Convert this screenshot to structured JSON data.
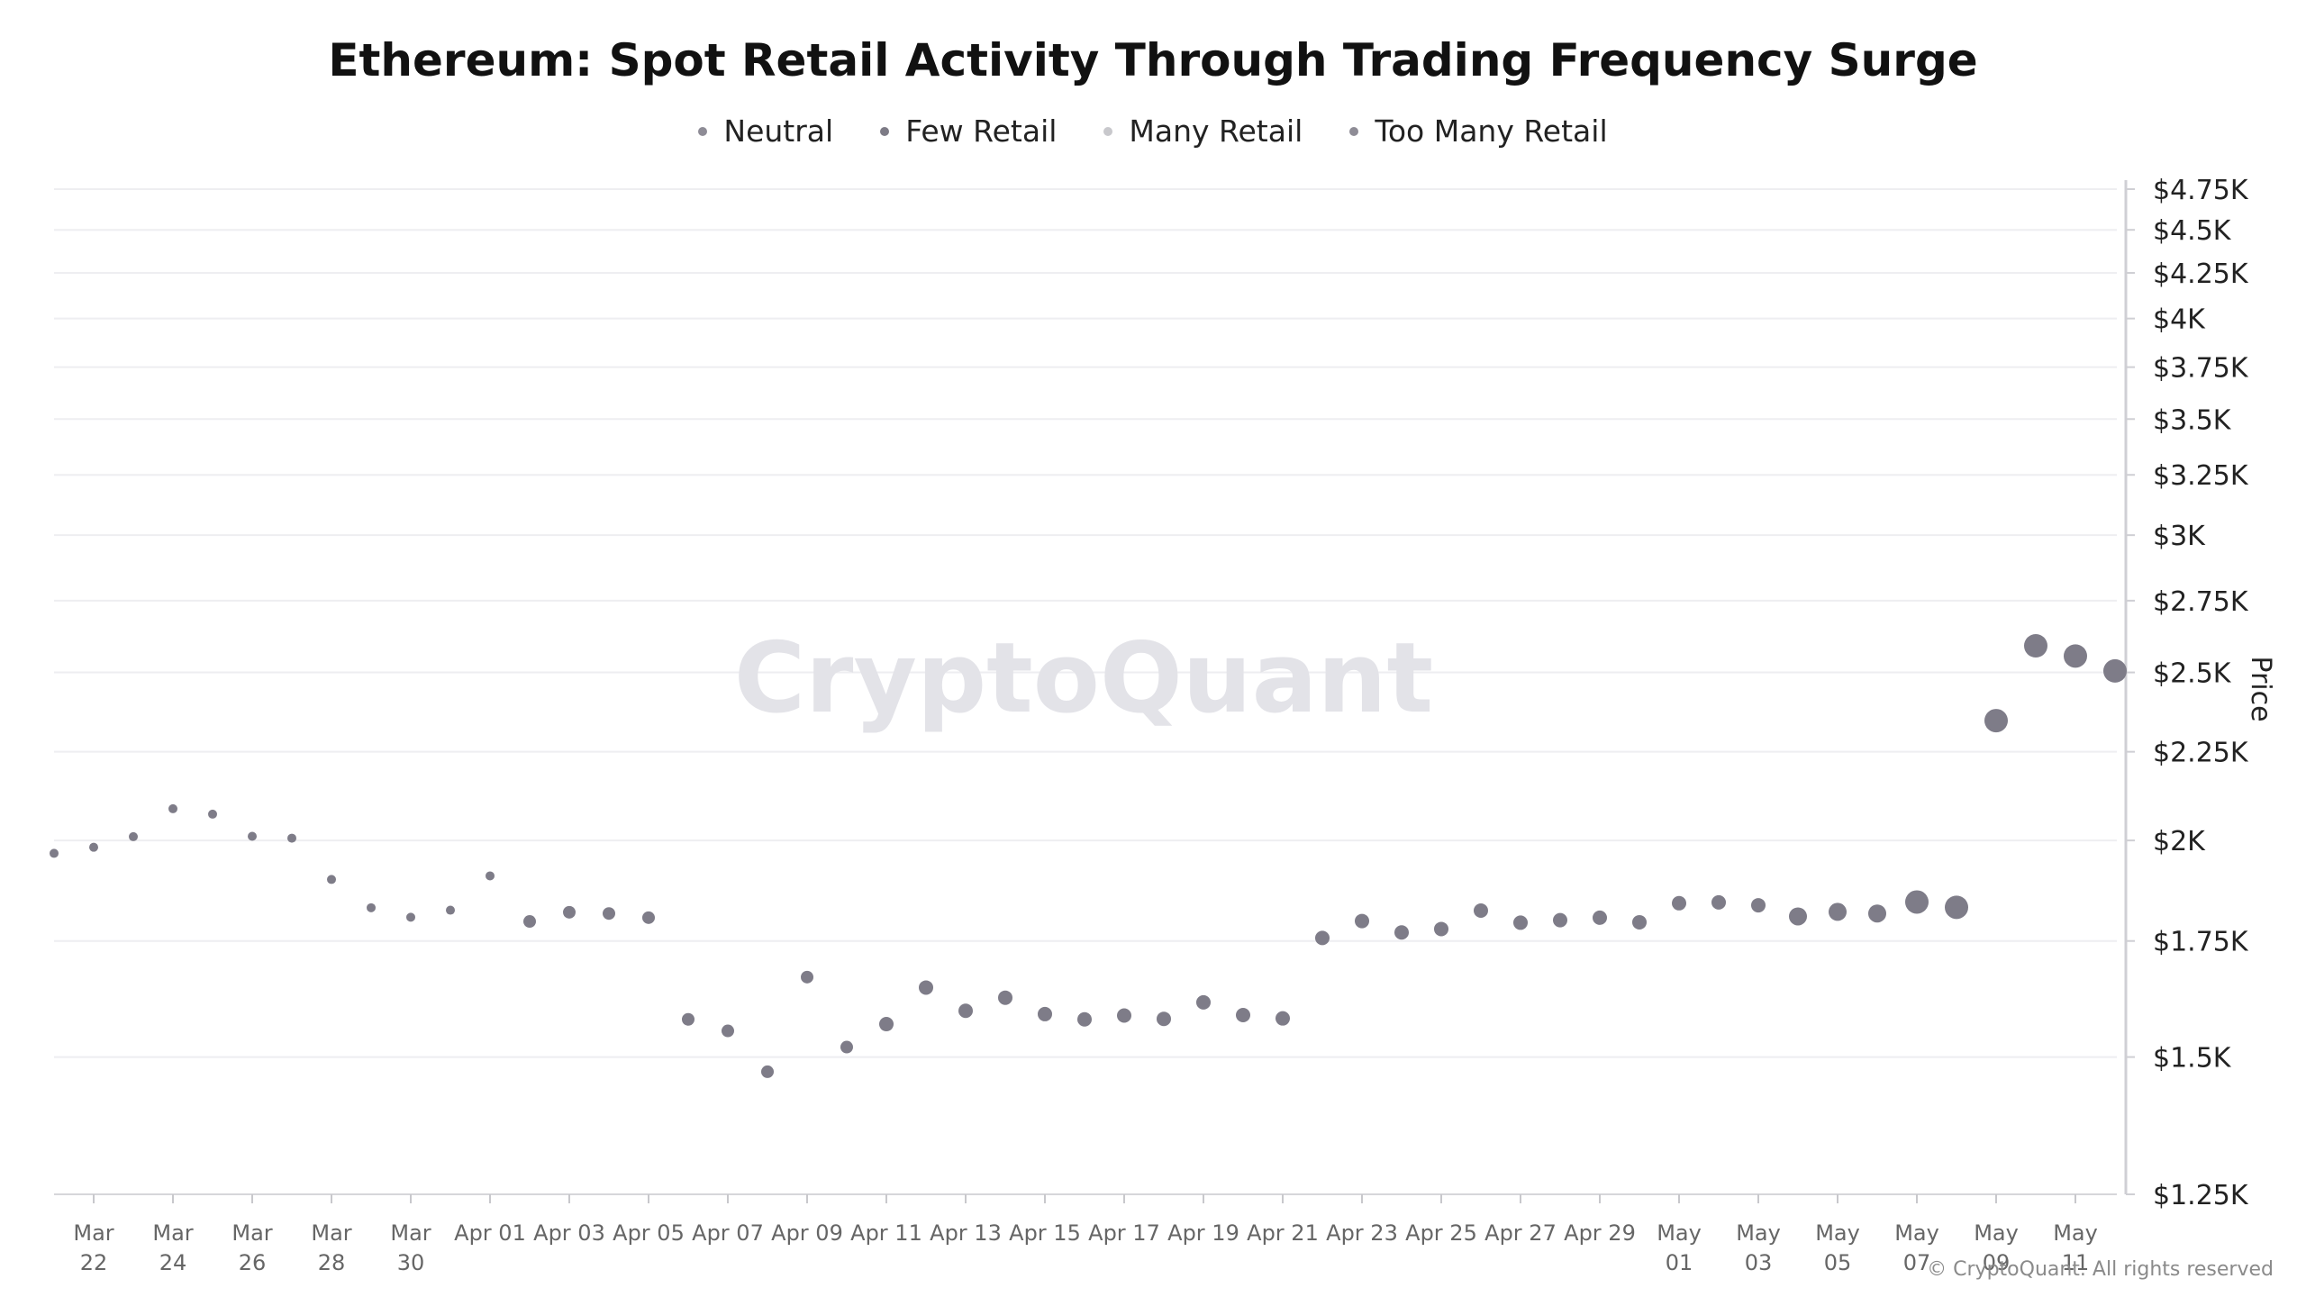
{
  "chart_data": {
    "type": "scatter",
    "title": "Ethereum: Spot Retail Activity Through Trading Frequency Surge",
    "ylabel": "Price",
    "y_scale": "log",
    "ylim": [
      1250,
      4750
    ],
    "grid": true,
    "legend_position": "top-center",
    "watermark": "CryptoQuant",
    "copyright": "© CryptoQuant. All rights reserved",
    "legend": [
      {
        "name": "Neutral",
        "color": "#8e8c96"
      },
      {
        "name": "Few Retail",
        "color": "#7d7b86"
      },
      {
        "name": "Many Retail",
        "color": "#c8c8cc"
      },
      {
        "name": "Too Many Retail",
        "color": "#8e8c96"
      }
    ],
    "y_ticks": [
      {
        "value": 4750,
        "label": "$4.75K"
      },
      {
        "value": 4500,
        "label": "$4.5K"
      },
      {
        "value": 4250,
        "label": "$4.25K"
      },
      {
        "value": 4000,
        "label": "$4K"
      },
      {
        "value": 3750,
        "label": "$3.75K"
      },
      {
        "value": 3500,
        "label": "$3.5K"
      },
      {
        "value": 3250,
        "label": "$3.25K"
      },
      {
        "value": 3000,
        "label": "$3K"
      },
      {
        "value": 2750,
        "label": "$2.75K"
      },
      {
        "value": 2500,
        "label": "$2.5K"
      },
      {
        "value": 2250,
        "label": "$2.25K"
      },
      {
        "value": 2000,
        "label": "$2K"
      },
      {
        "value": 1750,
        "label": "$1.75K"
      },
      {
        "value": 1500,
        "label": "$1.5K"
      },
      {
        "value": 1250,
        "label": "$1.25K"
      }
    ],
    "x_ticks": [
      {
        "date": "2025-03-22",
        "line1": "Mar",
        "line2": "22"
      },
      {
        "date": "2025-03-24",
        "line1": "Mar",
        "line2": "24"
      },
      {
        "date": "2025-03-26",
        "line1": "Mar",
        "line2": "26"
      },
      {
        "date": "2025-03-28",
        "line1": "Mar",
        "line2": "28"
      },
      {
        "date": "2025-03-30",
        "line1": "Mar",
        "line2": "30"
      },
      {
        "date": "2025-04-01",
        "line1": "Apr 01",
        "line2": ""
      },
      {
        "date": "2025-04-03",
        "line1": "Apr 03",
        "line2": ""
      },
      {
        "date": "2025-04-05",
        "line1": "Apr 05",
        "line2": ""
      },
      {
        "date": "2025-04-07",
        "line1": "Apr 07",
        "line2": ""
      },
      {
        "date": "2025-04-09",
        "line1": "Apr 09",
        "line2": ""
      },
      {
        "date": "2025-04-11",
        "line1": "Apr 11",
        "line2": ""
      },
      {
        "date": "2025-04-13",
        "line1": "Apr 13",
        "line2": ""
      },
      {
        "date": "2025-04-15",
        "line1": "Apr 15",
        "line2": ""
      },
      {
        "date": "2025-04-17",
        "line1": "Apr 17",
        "line2": ""
      },
      {
        "date": "2025-04-19",
        "line1": "Apr 19",
        "line2": ""
      },
      {
        "date": "2025-04-21",
        "line1": "Apr 21",
        "line2": ""
      },
      {
        "date": "2025-04-23",
        "line1": "Apr 23",
        "line2": ""
      },
      {
        "date": "2025-04-25",
        "line1": "Apr 25",
        "line2": ""
      },
      {
        "date": "2025-04-27",
        "line1": "Apr 27",
        "line2": ""
      },
      {
        "date": "2025-04-29",
        "line1": "Apr 29",
        "line2": ""
      },
      {
        "date": "2025-05-01",
        "line1": "May",
        "line2": "01"
      },
      {
        "date": "2025-05-03",
        "line1": "May",
        "line2": "03"
      },
      {
        "date": "2025-05-05",
        "line1": "May",
        "line2": "05"
      },
      {
        "date": "2025-05-07",
        "line1": "May",
        "line2": "07"
      },
      {
        "date": "2025-05-09",
        "line1": "May",
        "line2": "09"
      },
      {
        "date": "2025-05-11",
        "line1": "May",
        "line2": "11"
      }
    ],
    "points": [
      {
        "date": "2025-03-21",
        "price": 1966,
        "size": 1
      },
      {
        "date": "2025-03-22",
        "price": 1982,
        "size": 1
      },
      {
        "date": "2025-03-23",
        "price": 2010,
        "size": 1
      },
      {
        "date": "2025-03-24",
        "price": 2086,
        "size": 1
      },
      {
        "date": "2025-03-25",
        "price": 2071,
        "size": 1
      },
      {
        "date": "2025-03-26",
        "price": 2011,
        "size": 1
      },
      {
        "date": "2025-03-27",
        "price": 2006,
        "size": 1
      },
      {
        "date": "2025-03-28",
        "price": 1899,
        "size": 1
      },
      {
        "date": "2025-03-29",
        "price": 1829,
        "size": 1
      },
      {
        "date": "2025-03-30",
        "price": 1806,
        "size": 1
      },
      {
        "date": "2025-03-31",
        "price": 1823,
        "size": 1
      },
      {
        "date": "2025-04-01",
        "price": 1908,
        "size": 1
      },
      {
        "date": "2025-04-02",
        "price": 1796,
        "size": 2
      },
      {
        "date": "2025-04-03",
        "price": 1818,
        "size": 2
      },
      {
        "date": "2025-04-04",
        "price": 1815,
        "size": 2
      },
      {
        "date": "2025-04-05",
        "price": 1805,
        "size": 2
      },
      {
        "date": "2025-04-06",
        "price": 1577,
        "size": 2
      },
      {
        "date": "2025-04-07",
        "price": 1553,
        "size": 2
      },
      {
        "date": "2025-04-08",
        "price": 1471,
        "size": 2
      },
      {
        "date": "2025-04-09",
        "price": 1668,
        "size": 2
      },
      {
        "date": "2025-04-10",
        "price": 1520,
        "size": 2
      },
      {
        "date": "2025-04-11",
        "price": 1567,
        "size": 3
      },
      {
        "date": "2025-04-12",
        "price": 1645,
        "size": 3
      },
      {
        "date": "2025-04-13",
        "price": 1595,
        "size": 3
      },
      {
        "date": "2025-04-14",
        "price": 1623,
        "size": 3
      },
      {
        "date": "2025-04-15",
        "price": 1588,
        "size": 3
      },
      {
        "date": "2025-04-16",
        "price": 1577,
        "size": 3
      },
      {
        "date": "2025-04-17",
        "price": 1585,
        "size": 3
      },
      {
        "date": "2025-04-18",
        "price": 1578,
        "size": 3
      },
      {
        "date": "2025-04-19",
        "price": 1613,
        "size": 3
      },
      {
        "date": "2025-04-20",
        "price": 1586,
        "size": 3
      },
      {
        "date": "2025-04-21",
        "price": 1579,
        "size": 3
      },
      {
        "date": "2025-04-22",
        "price": 1757,
        "size": 3
      },
      {
        "date": "2025-04-23",
        "price": 1797,
        "size": 3
      },
      {
        "date": "2025-04-24",
        "price": 1770,
        "size": 3
      },
      {
        "date": "2025-04-25",
        "price": 1778,
        "size": 3
      },
      {
        "date": "2025-04-26",
        "price": 1822,
        "size": 3
      },
      {
        "date": "2025-04-27",
        "price": 1793,
        "size": 3
      },
      {
        "date": "2025-04-28",
        "price": 1799,
        "size": 3
      },
      {
        "date": "2025-04-29",
        "price": 1805,
        "size": 3
      },
      {
        "date": "2025-04-30",
        "price": 1794,
        "size": 3
      },
      {
        "date": "2025-05-01",
        "price": 1840,
        "size": 3
      },
      {
        "date": "2025-05-02",
        "price": 1842,
        "size": 3
      },
      {
        "date": "2025-05-03",
        "price": 1835,
        "size": 3
      },
      {
        "date": "2025-05-04",
        "price": 1808,
        "size": 4
      },
      {
        "date": "2025-05-05",
        "price": 1819,
        "size": 4
      },
      {
        "date": "2025-05-06",
        "price": 1815,
        "size": 4
      },
      {
        "date": "2025-05-07",
        "price": 1843,
        "size": 5
      },
      {
        "date": "2025-05-08",
        "price": 1830,
        "size": 5
      },
      {
        "date": "2025-05-09",
        "price": 2345,
        "size": 5
      },
      {
        "date": "2025-05-10",
        "price": 2590,
        "size": 5
      },
      {
        "date": "2025-05-11",
        "price": 2555,
        "size": 5
      },
      {
        "date": "2025-05-12",
        "price": 2505,
        "size": 5
      }
    ]
  }
}
